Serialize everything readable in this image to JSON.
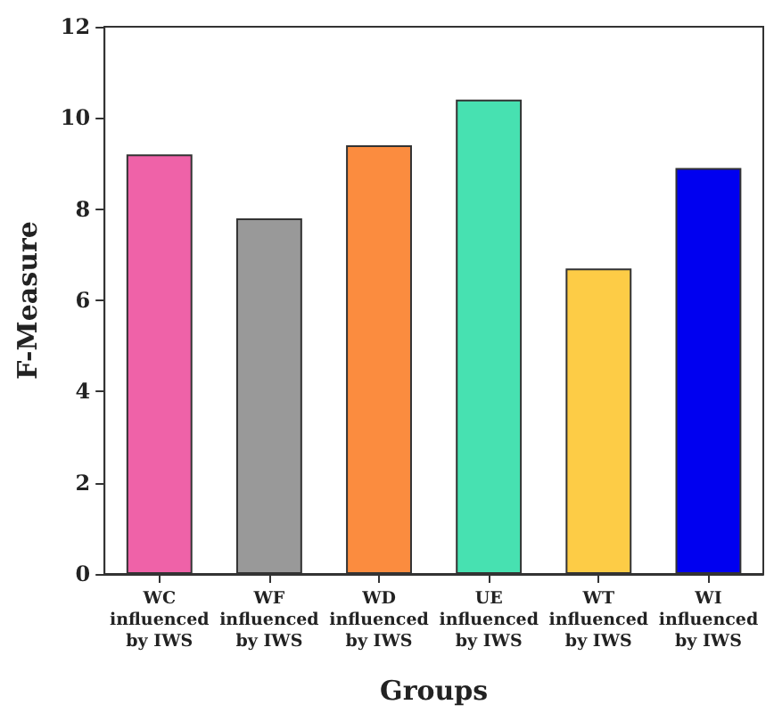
{
  "chart_data": {
    "type": "bar",
    "xlabel": "Groups",
    "ylabel": "F-Measure",
    "categories": [
      "WC\ninfluenced\nby IWS",
      "WF\ninfluenced\nby IWS",
      "WD\ninfluenced\nby IWS",
      "UE\ninfluenced\nby IWS",
      "WT\ninfluenced\nby IWS",
      "WI\ninfluenced\nby IWS"
    ],
    "values": [
      9.2,
      7.8,
      9.4,
      10.4,
      6.7,
      8.9
    ],
    "colors": [
      "#ef62a8",
      "#999999",
      "#fb8c3f",
      "#47e1b1",
      "#fdcc46",
      "#0000f0"
    ],
    "ylim": [
      0,
      12
    ],
    "yticks": [
      0,
      2,
      4,
      6,
      8,
      10,
      12
    ],
    "grid": false
  }
}
